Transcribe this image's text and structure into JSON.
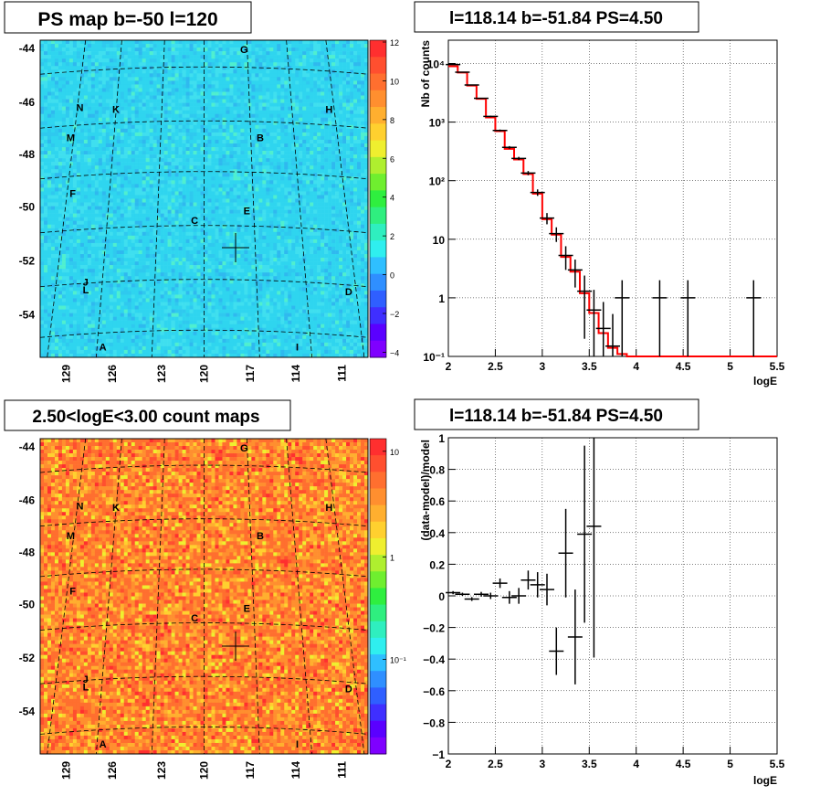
{
  "panels": {
    "map_top": {
      "title": "PS map b=-50 l=120",
      "ylabels": [
        "-44",
        "-46",
        "-48",
        "-50",
        "-52",
        "-54"
      ],
      "xlabels": [
        "129",
        "126",
        "123",
        "120",
        "117",
        "114",
        "111"
      ],
      "source_labels": [
        "G",
        "N",
        "K",
        "H",
        "M",
        "B",
        "F",
        "E",
        "C",
        "J",
        "L",
        "D",
        "A",
        "I"
      ],
      "colorbar": {
        "ticks": [
          "12",
          "10",
          "8",
          "6",
          "4",
          "2",
          "0",
          "−2",
          "−4"
        ],
        "colors": [
          "#7f00ff",
          "#5a00ff",
          "#3f2fff",
          "#2f5fff",
          "#2f8fff",
          "#2fbfff",
          "#2fefef",
          "#2fefbf",
          "#2fef7f",
          "#2fef3f",
          "#6fef2f",
          "#afef2f",
          "#efef2f",
          "#ffd02f",
          "#ffaf2f",
          "#ff8f2f",
          "#ff6f2f",
          "#ff4f2f",
          "#ff2f2f"
        ]
      }
    },
    "map_bottom": {
      "title": "2.50<logE<3.00 count maps",
      "ylabels": [
        "-44",
        "-46",
        "-48",
        "-50",
        "-52",
        "-54"
      ],
      "xlabels": [
        "129",
        "126",
        "123",
        "120",
        "117",
        "114",
        "111"
      ],
      "source_labels": [
        "G",
        "N",
        "K",
        "H",
        "M",
        "B",
        "F",
        "E",
        "C",
        "J",
        "L",
        "D",
        "A",
        "I"
      ],
      "colorbar": {
        "ticks": [
          "10",
          "1",
          "10⁻¹"
        ]
      }
    },
    "spectrum": {
      "title": "l=118.14 b=-51.84 PS=4.50"
    },
    "residual": {
      "title": "l=118.14 b=-51.84 PS=4.50"
    }
  },
  "chart_data": [
    {
      "type": "heatmap",
      "title": "PS map b=-50 l=120",
      "ylim": [
        -55.5,
        -43.5
      ],
      "xlim": [
        131,
        109
      ],
      "yticks": [
        -44,
        -46,
        -48,
        -50,
        -52,
        -54
      ],
      "xticks": [
        129,
        126,
        123,
        120,
        117,
        114,
        111
      ],
      "zlim": [
        -5,
        12
      ],
      "colorbar_ticks": [
        12,
        10,
        8,
        6,
        4,
        2,
        0,
        -2,
        -4
      ],
      "marker": {
        "x": 118.14,
        "y": -51.84
      }
    },
    {
      "type": "heatmap",
      "title": "2.50<logE<3.00 count maps",
      "ylim": [
        -55.5,
        -43.5
      ],
      "xlim": [
        131,
        109
      ],
      "yticks": [
        -44,
        -46,
        -48,
        -50,
        -52,
        -54
      ],
      "xticks": [
        129,
        126,
        123,
        120,
        117,
        114,
        111
      ],
      "zscale": "log",
      "colorbar_ticks": [
        "10",
        "1",
        "10⁻¹"
      ],
      "marker": {
        "x": 118.14,
        "y": -51.84
      }
    },
    {
      "type": "line",
      "title": "l=118.14 b=-51.84 PS=4.50",
      "xlabel": "logE",
      "ylabel": "Nb of counts",
      "xlim": [
        2,
        5.5
      ],
      "ylim": [
        0.1,
        25000
      ],
      "yscale": "log",
      "grid": true,
      "xticks": [
        "2",
        "2.5",
        "3",
        "3.5",
        "4",
        "4.5",
        "5",
        "5.5"
      ],
      "yticks": [
        "10⁻¹",
        "1",
        "10",
        "10²",
        "10³",
        "10⁴"
      ],
      "series": [
        {
          "kind": "step",
          "x_edges": [
            2.0,
            2.1,
            2.2,
            2.3,
            2.4,
            2.5,
            2.6,
            2.7,
            2.8,
            2.9,
            3.0,
            3.1,
            3.2,
            3.3,
            3.4,
            3.5,
            3.6,
            3.7,
            3.8,
            3.9,
            4.0,
            5.5
          ],
          "values": [
            9000,
            7000,
            4200,
            2500,
            1200,
            700,
            350,
            230,
            130,
            60,
            22,
            12,
            5,
            2.8,
            1.2,
            0.55,
            0.25,
            0.14,
            0.11,
            0.1,
            0.1
          ],
          "color": "#ff0000"
        },
        {
          "kind": "points",
          "x": [
            2.05,
            2.15,
            2.25,
            2.35,
            2.45,
            2.55,
            2.65,
            2.75,
            2.85,
            2.95,
            3.05,
            3.15,
            3.25,
            3.35,
            3.45,
            3.55,
            3.65,
            3.75,
            3.85,
            4.25,
            4.55,
            5.25
          ],
          "y": [
            9600,
            7100,
            4300,
            2550,
            1250,
            720,
            370,
            240,
            135,
            63,
            23,
            12.5,
            5.3,
            3,
            1.3,
            0.62,
            0.3,
            0.15,
            1,
            1,
            1,
            1
          ],
          "yerr_lo": [
            100,
            85,
            65,
            50,
            35,
            27,
            19,
            15,
            11,
            8,
            5,
            3.5,
            2.3,
            1.5,
            1.1,
            0.75,
            0.55,
            0.38,
            0.9,
            0.9,
            0.9,
            0.9
          ],
          "yerr_hi": [
            100,
            85,
            65,
            50,
            35,
            27,
            19,
            15,
            11,
            8,
            5,
            3.5,
            2.3,
            1.5,
            1.1,
            0.75,
            0.55,
            0.38,
            1.0,
            1.0,
            1.0,
            1.0
          ],
          "color": "#000000"
        }
      ]
    },
    {
      "type": "scatter",
      "title": "l=118.14 b=-51.84 PS=4.50",
      "xlabel": "logE",
      "ylabel": "(data-model)/model",
      "xlim": [
        2,
        5.5
      ],
      "ylim": [
        -1,
        1
      ],
      "grid": true,
      "xticks": [
        "2",
        "2.5",
        "3",
        "3.5",
        "4",
        "4.5",
        "5",
        "5.5"
      ],
      "yticks": [
        "−1",
        "−0.8",
        "−0.6",
        "−0.4",
        "−0.2",
        "0",
        "0.2",
        "0.4",
        "0.6",
        "0.8",
        "1"
      ],
      "series": [
        {
          "x": [
            2.05,
            2.15,
            2.25,
            2.35,
            2.45,
            2.55,
            2.65,
            2.75,
            2.85,
            2.95,
            3.05,
            3.15,
            3.25,
            3.35,
            3.45,
            3.55
          ],
          "y": [
            0.02,
            0.01,
            -0.02,
            0.01,
            0.0,
            0.08,
            -0.01,
            0.0,
            0.1,
            0.07,
            0.04,
            -0.35,
            0.27,
            -0.26,
            0.39,
            0.44
          ],
          "yerr": [
            0.01,
            0.01,
            0.012,
            0.015,
            0.02,
            0.03,
            0.04,
            0.05,
            0.06,
            0.08,
            0.1,
            0.15,
            0.28,
            0.3,
            0.56,
            0.83
          ],
          "color": "#000000"
        }
      ]
    }
  ]
}
